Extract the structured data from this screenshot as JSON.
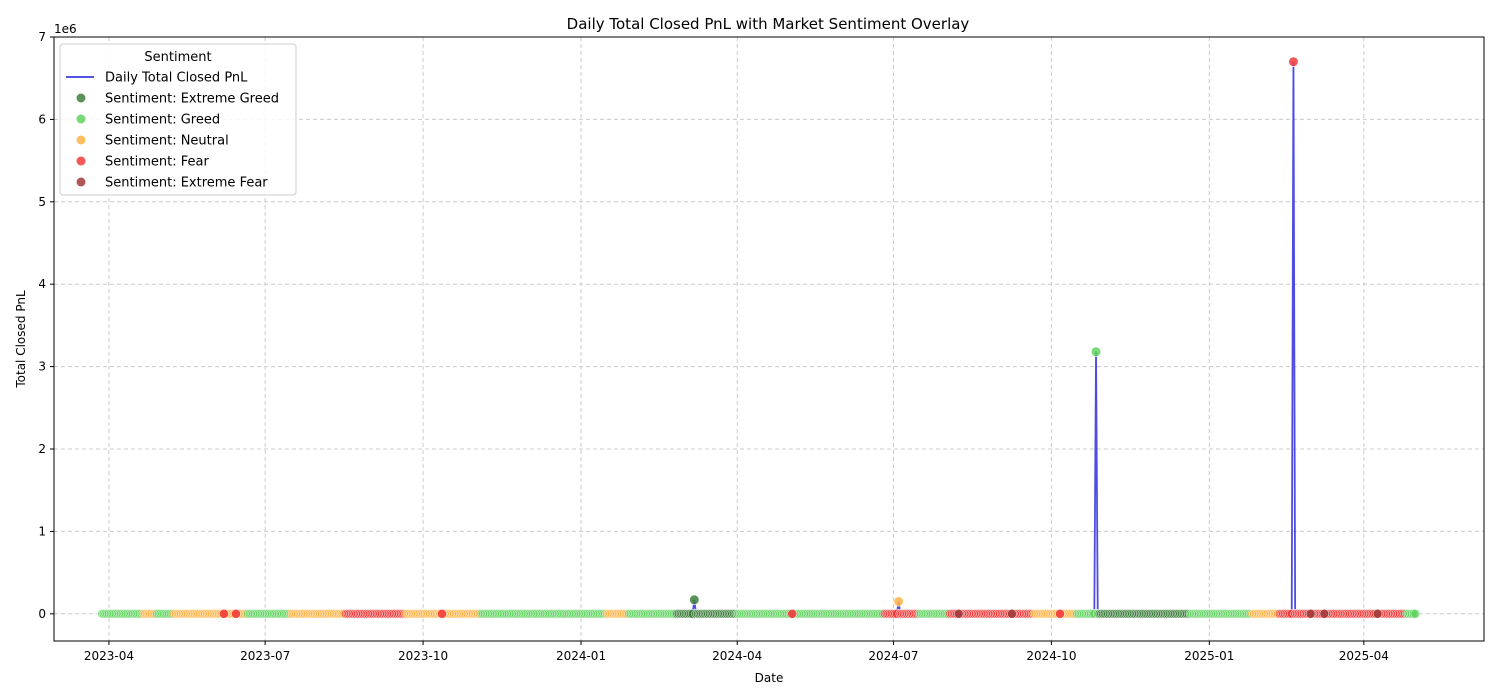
{
  "chart_data": {
    "type": "line",
    "title": "Daily Total Closed PnL with Market Sentiment Overlay",
    "xlabel": "Date",
    "ylabel": "Total Closed PnL",
    "y_multiplier_label": "1e6",
    "xlim": [
      "2023-02-28",
      "2025-06-10"
    ],
    "ylim": [
      -0.33,
      7.0
    ],
    "yticks": [
      0,
      1,
      2,
      3,
      4,
      5,
      6,
      7
    ],
    "xticks": [
      "2023-04",
      "2023-07",
      "2023-10",
      "2024-01",
      "2024-04",
      "2024-07",
      "2024-10",
      "2025-01",
      "2025-04"
    ],
    "grid": true,
    "legend": {
      "title": "Sentiment",
      "placement": "top-left",
      "entries": [
        {
          "label": "Daily Total Closed PnL",
          "kind": "line",
          "color": "#3a3ae0"
        },
        {
          "label": "Sentiment: Extreme Greed",
          "kind": "marker",
          "color": "#3d7f3d"
        },
        {
          "label": "Sentiment: Greed",
          "kind": "marker",
          "color": "#5fd35f"
        },
        {
          "label": "Sentiment: Neutral",
          "kind": "marker",
          "color": "#ffb347"
        },
        {
          "label": "Sentiment: Fear",
          "kind": "marker",
          "color": "#f23a3a"
        },
        {
          "label": "Sentiment: Extreme Fear",
          "kind": "marker",
          "color": "#a23a3a"
        }
      ]
    },
    "colors": {
      "line": "#3a3ae0",
      "Extreme Greed": "#3d7f3d",
      "Greed": "#5fd35f",
      "Neutral": "#ffb347",
      "Fear": "#f23a3a",
      "Extreme Fear": "#a23a3a"
    },
    "series_range": {
      "start": "2023-03-28",
      "end": "2025-05-01",
      "baseline_pnl": 0
    },
    "sentiment_periods": [
      {
        "start": "2023-03-28",
        "end": "2023-04-20",
        "sentiment": "Greed"
      },
      {
        "start": "2023-04-21",
        "end": "2023-04-28",
        "sentiment": "Neutral"
      },
      {
        "start": "2023-04-29",
        "end": "2023-05-08",
        "sentiment": "Greed"
      },
      {
        "start": "2023-05-09",
        "end": "2023-06-20",
        "sentiment": "Neutral"
      },
      {
        "start": "2023-06-21",
        "end": "2023-07-15",
        "sentiment": "Greed"
      },
      {
        "start": "2023-07-16",
        "end": "2023-08-16",
        "sentiment": "Neutral"
      },
      {
        "start": "2023-08-17",
        "end": "2023-09-20",
        "sentiment": "Fear"
      },
      {
        "start": "2023-09-21",
        "end": "2023-10-20",
        "sentiment": "Neutral"
      },
      {
        "start": "2023-10-21",
        "end": "2023-11-03",
        "sentiment": "Neutral"
      },
      {
        "start": "2023-11-04",
        "end": "2024-01-15",
        "sentiment": "Greed"
      },
      {
        "start": "2024-01-16",
        "end": "2024-01-28",
        "sentiment": "Neutral"
      },
      {
        "start": "2024-01-29",
        "end": "2024-02-25",
        "sentiment": "Greed"
      },
      {
        "start": "2024-02-26",
        "end": "2024-03-31",
        "sentiment": "Extreme Greed"
      },
      {
        "start": "2024-04-01",
        "end": "2024-05-15",
        "sentiment": "Greed"
      },
      {
        "start": "2024-05-16",
        "end": "2024-06-25",
        "sentiment": "Greed"
      },
      {
        "start": "2024-06-26",
        "end": "2024-07-15",
        "sentiment": "Fear"
      },
      {
        "start": "2024-07-16",
        "end": "2024-08-02",
        "sentiment": "Greed"
      },
      {
        "start": "2024-08-03",
        "end": "2024-09-20",
        "sentiment": "Fear"
      },
      {
        "start": "2024-09-21",
        "end": "2024-10-15",
        "sentiment": "Neutral"
      },
      {
        "start": "2024-10-16",
        "end": "2024-10-28",
        "sentiment": "Greed"
      },
      {
        "start": "2024-10-29",
        "end": "2024-12-20",
        "sentiment": "Extreme Greed"
      },
      {
        "start": "2024-12-21",
        "end": "2025-01-25",
        "sentiment": "Greed"
      },
      {
        "start": "2025-01-26",
        "end": "2025-02-10",
        "sentiment": "Neutral"
      },
      {
        "start": "2025-02-11",
        "end": "2025-04-25",
        "sentiment": "Fear"
      },
      {
        "start": "2025-04-26",
        "end": "2025-05-01",
        "sentiment": "Greed"
      }
    ],
    "highlight_points": [
      {
        "date": "2023-06-07",
        "sentiment": "Fear",
        "pnl": 0
      },
      {
        "date": "2023-06-14",
        "sentiment": "Fear",
        "pnl": 0
      },
      {
        "date": "2023-10-12",
        "sentiment": "Fear",
        "pnl": 0
      },
      {
        "date": "2024-05-03",
        "sentiment": "Fear",
        "pnl": 0
      },
      {
        "date": "2024-08-08",
        "sentiment": "Extreme Fear",
        "pnl": 0
      },
      {
        "date": "2024-09-08",
        "sentiment": "Extreme Fear",
        "pnl": 0
      },
      {
        "date": "2024-10-06",
        "sentiment": "Fear",
        "pnl": 0
      },
      {
        "date": "2025-03-01",
        "sentiment": "Extreme Fear",
        "pnl": 0
      },
      {
        "date": "2025-03-09",
        "sentiment": "Extreme Fear",
        "pnl": 0
      },
      {
        "date": "2025-04-09",
        "sentiment": "Extreme Fear",
        "pnl": 0
      }
    ],
    "peaks": [
      {
        "date": "2024-03-07",
        "pnl": 0.17,
        "sentiment": "Extreme Greed"
      },
      {
        "date": "2024-07-04",
        "pnl": 0.15,
        "sentiment": "Neutral"
      },
      {
        "date": "2024-10-27",
        "pnl": 3.18,
        "sentiment": "Greed"
      },
      {
        "date": "2025-02-19",
        "pnl": 6.7,
        "sentiment": "Fear"
      }
    ]
  }
}
